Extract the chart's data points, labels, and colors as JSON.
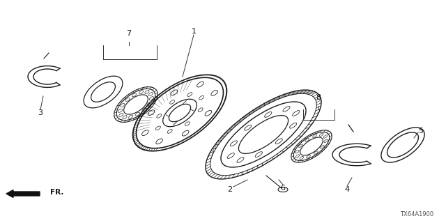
{
  "bg_color": "#ffffff",
  "line_color": "#1a1a1a",
  "fig_width": 6.4,
  "fig_height": 3.2,
  "dpi": 100,
  "watermark": "TX64A1900"
}
